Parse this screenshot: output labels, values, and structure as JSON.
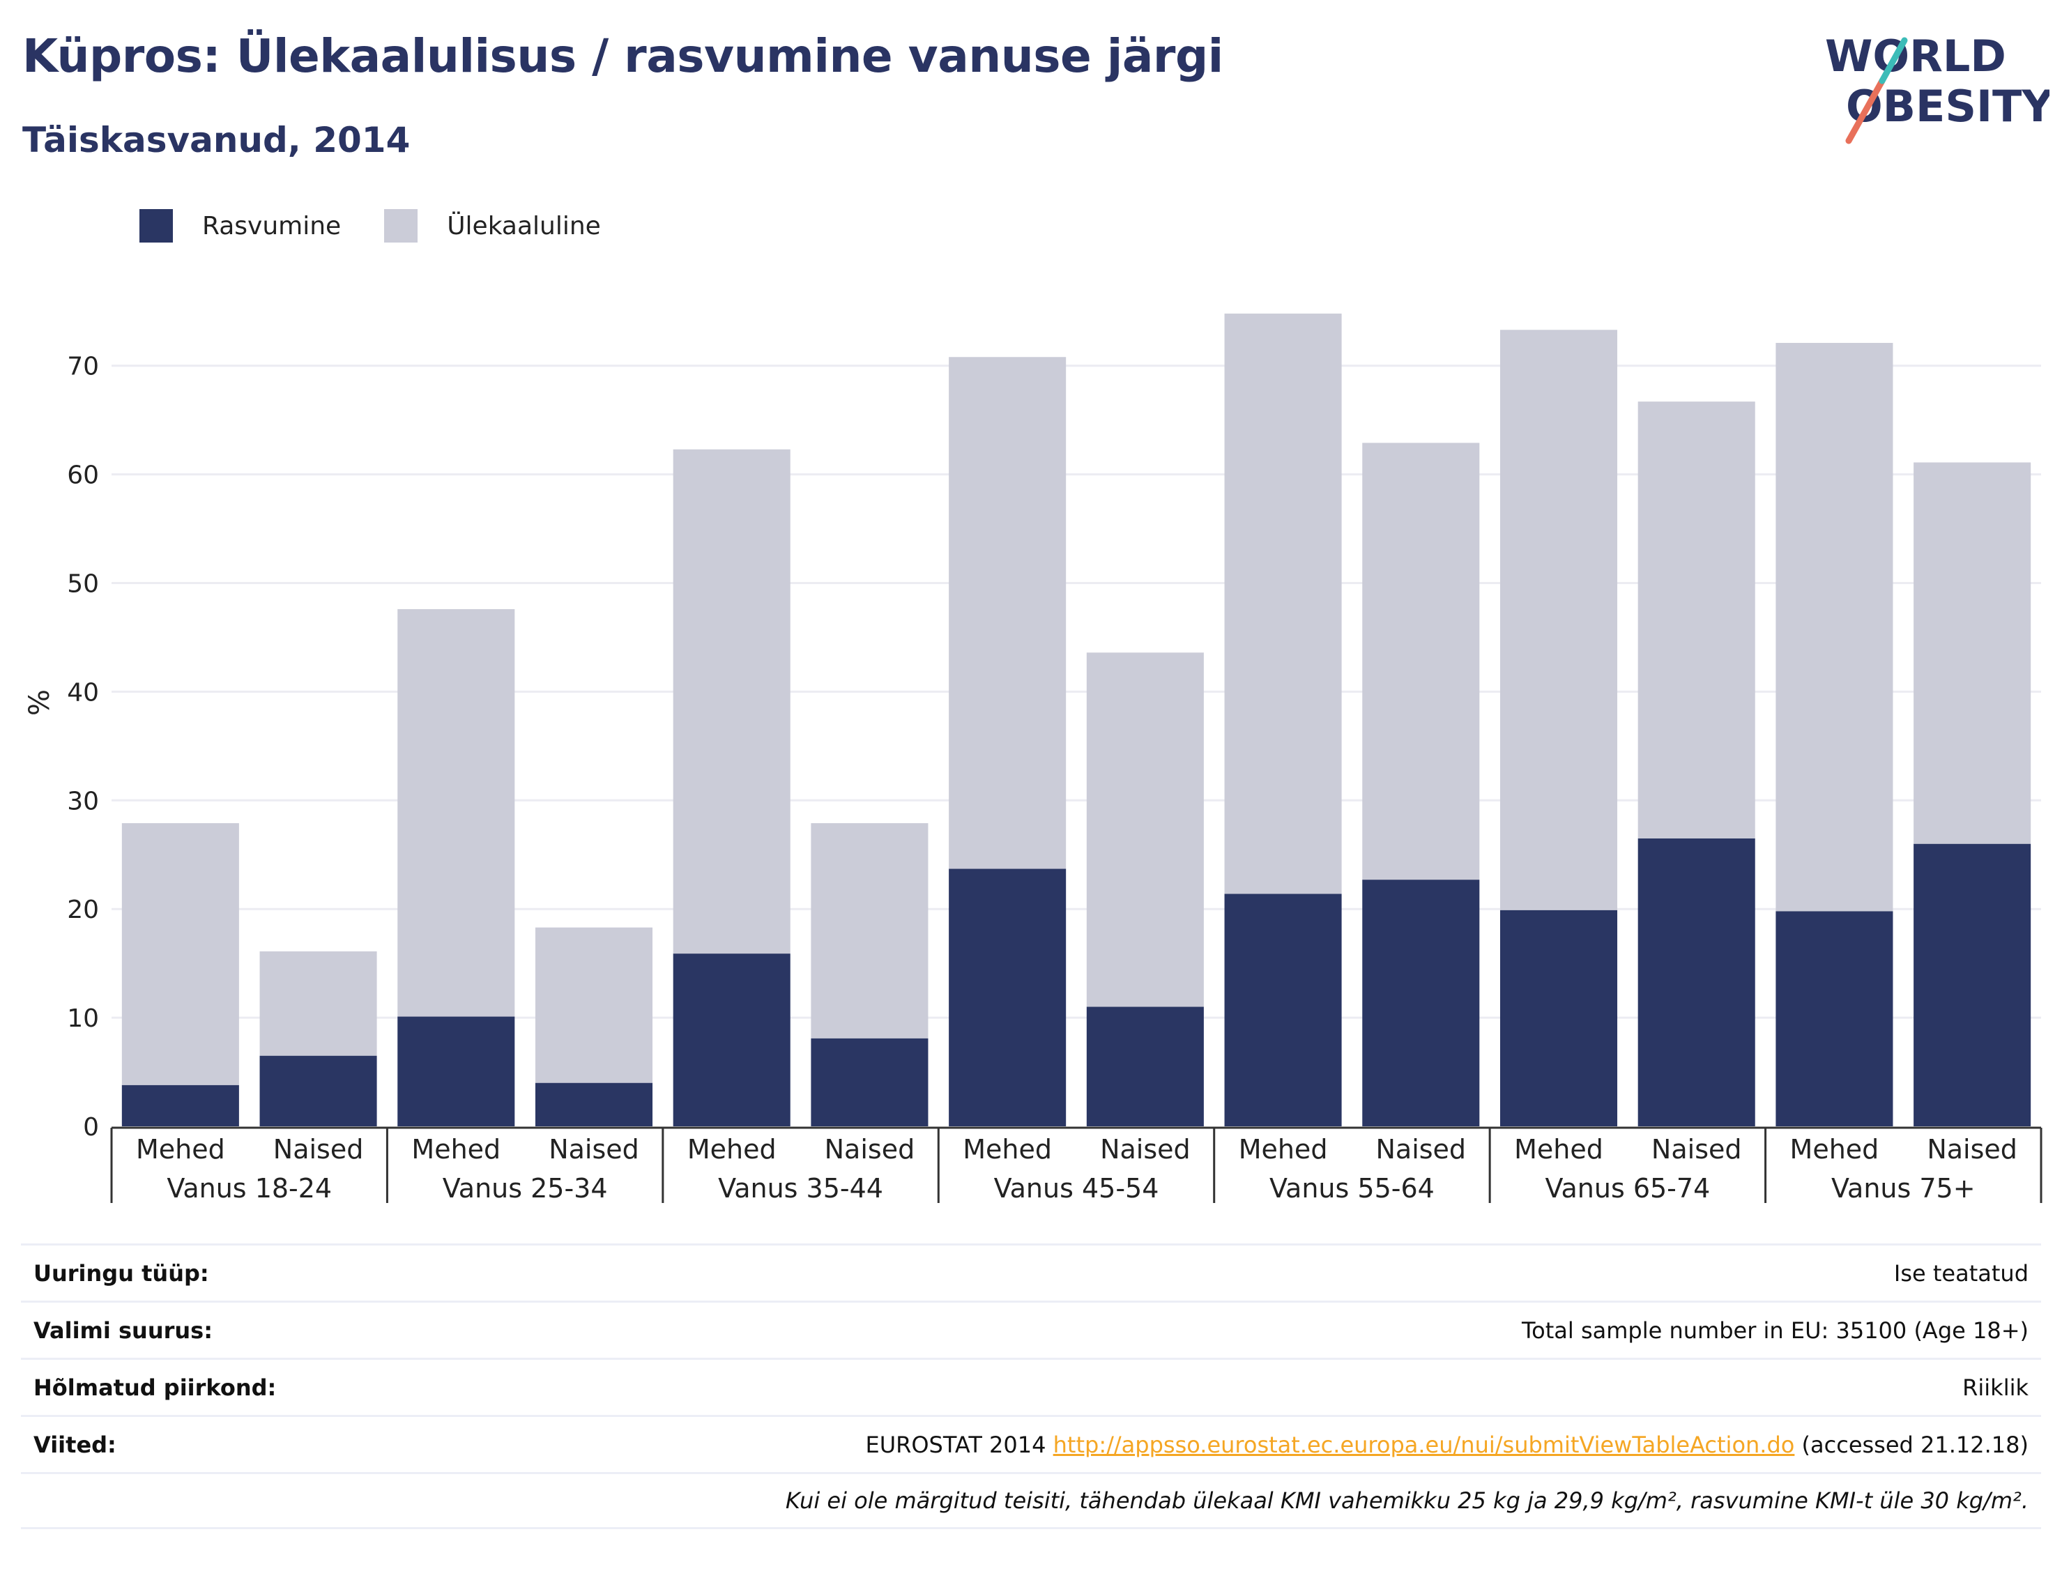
{
  "header": {
    "title": "Küpros: Ülekaalulisus / rasvumine vanuse järgi",
    "subtitle": "Täiskasvanud, 2014"
  },
  "logo": {
    "line1": "WORLD",
    "line2": "OBESITY",
    "icon": "world-obesity-logo"
  },
  "colors": {
    "obesity": "#2a3663",
    "overweight": "#cbccd8",
    "title": "#2a3463",
    "link": "#f5a623"
  },
  "chart_data": {
    "type": "bar",
    "stacked": true,
    "ylabel": "%",
    "ylim": [
      0,
      78
    ],
    "yticks": [
      0,
      10,
      20,
      30,
      40,
      50,
      60,
      70
    ],
    "grid": true,
    "legend_position": "top-left",
    "groups": [
      "Vanus 18-24",
      "Vanus 25-34",
      "Vanus 35-44",
      "Vanus 45-54",
      "Vanus 55-64",
      "Vanus 65-74",
      "Vanus 75+"
    ],
    "subcategories": [
      "Mehed",
      "Naised"
    ],
    "series": [
      {
        "name": "Rasvumine",
        "values": [
          3.8,
          6.5,
          10.1,
          4.0,
          15.9,
          8.1,
          23.7,
          11.0,
          21.4,
          22.7,
          19.9,
          26.5,
          19.8,
          26.0
        ]
      },
      {
        "name": "Ülekaaluline",
        "values": [
          24.1,
          9.6,
          37.5,
          14.3,
          46.4,
          19.8,
          47.1,
          32.6,
          53.4,
          40.2,
          53.4,
          40.2,
          52.3,
          35.1
        ]
      }
    ]
  },
  "info": {
    "rows": [
      {
        "key": "Uuringu tüüp:",
        "value": "Ise teatatud"
      },
      {
        "key": "Valimi suurus:",
        "value": "Total sample number in EU: 35100 (Age 18+)"
      },
      {
        "key": "Hõlmatud piirkond:",
        "value": "Riiklik"
      }
    ],
    "refs": {
      "key": "Viited:",
      "prefix": "EUROSTAT 2014",
      "link": "http://appsso.eurostat.ec.europa.eu/nui/submitViewTableAction.do",
      "suffix": "(accessed 21.12.18)"
    },
    "note": "Kui ei ole märgitud teisiti, tähendab ülekaal KMI vahemikku 25 kg ja 29,9 kg/m², rasvumine KMI-t üle 30 kg/m²."
  }
}
